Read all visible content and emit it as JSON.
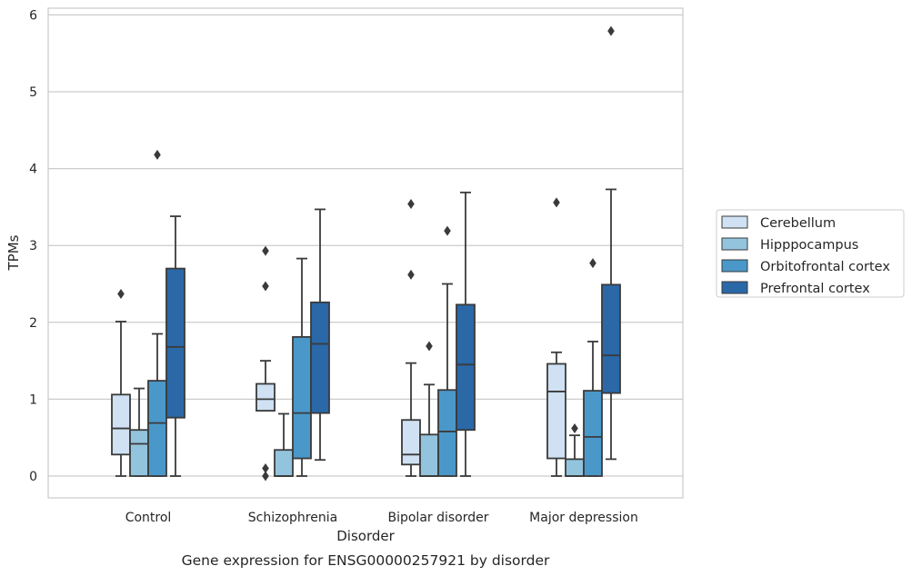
{
  "chart_data": {
    "type": "box",
    "title": "",
    "caption": "Gene expression for ENSG00000257921 by disorder",
    "xlabel": "Disorder",
    "ylabel": "TPMs",
    "ylim": [
      -0.28,
      6.1
    ],
    "yticks": [
      0,
      1,
      2,
      3,
      4,
      5,
      6
    ],
    "grid": "horizontal",
    "legend_position": "right",
    "categories": [
      "Control",
      "Schizophrenia",
      "Bipolar disorder",
      "Major depression"
    ],
    "series": [
      {
        "name": "Cerebellum",
        "color": "#cfe1f2",
        "boxes": [
          {
            "min": 0.0,
            "q1": 0.28,
            "median": 0.62,
            "q3": 1.06,
            "max": 2.01,
            "outliers": [
              2.37
            ]
          },
          {
            "min": 0.85,
            "q1": 0.85,
            "median": 1.0,
            "q3": 1.2,
            "max": 1.5,
            "outliers": [
              2.93,
              2.47,
              0.1,
              0.0
            ]
          },
          {
            "min": 0.0,
            "q1": 0.15,
            "median": 0.28,
            "q3": 0.73,
            "max": 1.47,
            "outliers": [
              3.54,
              2.62
            ]
          },
          {
            "min": 0.0,
            "q1": 0.23,
            "median": 1.1,
            "q3": 1.46,
            "max": 1.61,
            "outliers": [
              3.56
            ]
          }
        ]
      },
      {
        "name": "Hipppocampus",
        "color": "#93c4de",
        "boxes": [
          {
            "min": 0.0,
            "q1": 0.0,
            "median": 0.42,
            "q3": 0.6,
            "max": 1.14,
            "outliers": []
          },
          {
            "min": 0.0,
            "q1": 0.0,
            "median": 0.0,
            "q3": 0.34,
            "max": 0.81,
            "outliers": []
          },
          {
            "min": 0.0,
            "q1": 0.0,
            "median": 0.0,
            "q3": 0.54,
            "max": 1.19,
            "outliers": [
              1.69
            ]
          },
          {
            "min": 0.0,
            "q1": 0.0,
            "median": 0.0,
            "q3": 0.22,
            "max": 0.53,
            "outliers": [
              0.62
            ]
          }
        ]
      },
      {
        "name": "Orbitofrontal cortex",
        "color": "#4a98c9",
        "boxes": [
          {
            "min": 0.0,
            "q1": 0.0,
            "median": 0.69,
            "q3": 1.24,
            "max": 1.85,
            "outliers": [
              4.18
            ]
          },
          {
            "min": 0.0,
            "q1": 0.23,
            "median": 0.82,
            "q3": 1.81,
            "max": 2.83,
            "outliers": []
          },
          {
            "min": 0.0,
            "q1": 0.0,
            "median": 0.58,
            "q3": 1.12,
            "max": 2.5,
            "outliers": [
              3.19
            ]
          },
          {
            "min": 0.0,
            "q1": 0.0,
            "median": 0.51,
            "q3": 1.11,
            "max": 1.75,
            "outliers": [
              2.77
            ]
          }
        ]
      },
      {
        "name": "Prefrontal cortex",
        "color": "#2a68a8",
        "boxes": [
          {
            "min": 0.0,
            "q1": 0.76,
            "median": 1.68,
            "q3": 2.7,
            "max": 3.38,
            "outliers": []
          },
          {
            "min": 0.21,
            "q1": 0.82,
            "median": 1.72,
            "q3": 2.26,
            "max": 3.47,
            "outliers": []
          },
          {
            "min": 0.0,
            "q1": 0.6,
            "median": 1.45,
            "q3": 2.23,
            "max": 3.69,
            "outliers": []
          },
          {
            "min": 0.22,
            "q1": 1.08,
            "median": 1.57,
            "q3": 2.49,
            "max": 3.73,
            "outliers": [
              5.79
            ]
          }
        ]
      }
    ]
  }
}
